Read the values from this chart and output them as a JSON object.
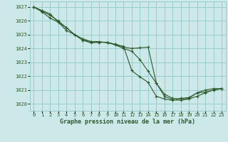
{
  "background_color": "#cce8e8",
  "grid_color": "#99cccc",
  "line_color": "#2d5a2d",
  "marker_color": "#2d5a2d",
  "xlabel": "Graphe pression niveau de la mer (hPa)",
  "xlim": [
    -0.5,
    23.5
  ],
  "ylim": [
    1019.5,
    1027.4
  ],
  "yticks": [
    1020,
    1021,
    1022,
    1023,
    1024,
    1025,
    1026,
    1027
  ],
  "xticks": [
    0,
    1,
    2,
    3,
    4,
    5,
    6,
    7,
    8,
    9,
    10,
    11,
    12,
    13,
    14,
    15,
    16,
    17,
    18,
    19,
    20,
    21,
    22,
    23
  ],
  "series": [
    {
      "x": [
        0,
        1,
        2,
        3,
        4,
        5,
        6,
        7,
        8,
        9,
        10,
        11,
        12,
        13,
        14,
        15,
        16,
        17,
        18,
        19,
        20,
        21,
        22,
        23
      ],
      "y": [
        1027.0,
        1026.7,
        1026.4,
        1026.0,
        1025.5,
        1025.0,
        1024.7,
        1024.5,
        1024.45,
        1024.45,
        1024.3,
        1024.1,
        1024.0,
        1024.05,
        1024.1,
        1021.5,
        1020.7,
        1020.4,
        1020.35,
        1020.4,
        1020.8,
        1020.85,
        1021.0,
        1021.1
      ]
    },
    {
      "x": [
        0,
        1,
        2,
        3,
        4,
        5,
        6,
        7,
        8,
        9,
        10,
        11,
        12,
        13,
        14,
        15,
        16,
        17,
        18,
        19,
        20,
        21,
        22,
        23
      ],
      "y": [
        1027.0,
        1026.65,
        1026.2,
        1025.9,
        1025.3,
        1025.0,
        1024.6,
        1024.4,
        1024.45,
        1024.45,
        1024.25,
        1024.0,
        1023.8,
        1023.2,
        1022.35,
        1021.5,
        1020.55,
        1020.3,
        1020.25,
        1020.35,
        1020.55,
        1020.8,
        1021.0,
        1021.1
      ]
    },
    {
      "x": [
        0,
        1,
        2,
        3,
        4,
        5,
        6,
        7,
        8,
        9,
        10,
        11,
        12,
        13,
        14,
        15,
        16,
        17,
        18,
        19,
        20,
        21,
        22,
        23
      ],
      "y": [
        1027.0,
        1026.75,
        1026.5,
        1025.9,
        1025.5,
        1025.0,
        1024.6,
        1024.5,
        1024.5,
        1024.4,
        1024.3,
        1024.15,
        1022.4,
        1021.95,
        1021.55,
        1020.55,
        1020.35,
        1020.25,
        1020.4,
        1020.45,
        1020.8,
        1021.0,
        1021.1,
        1021.1
      ]
    }
  ]
}
